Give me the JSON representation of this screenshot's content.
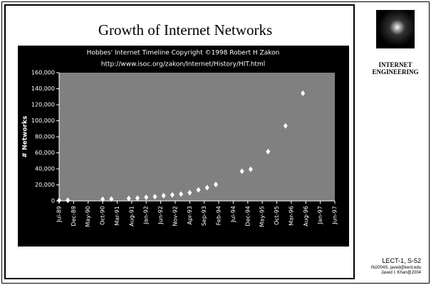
{
  "slide": {
    "title": "Growth of Internet Networks",
    "sidebar": "INTERNET ENGINEERING",
    "footer": [
      "LECT-1, S-52",
      "IN2004S, javed@kent.edu",
      "Javed I. Khan@2004"
    ]
  },
  "chart_data": {
    "type": "scatter",
    "title": "Hobbes' Internet Timeline Copyright ©1998 Robert H Zakon",
    "subtitle": "http://www.isoc.org/zakon/Internet/History/HIT.html",
    "y_label": "# Networks",
    "x": [
      "1989-07",
      "1989-10",
      "1990-10",
      "1991-01",
      "1991-07",
      "1991-10",
      "1992-01",
      "1992-04",
      "1992-07",
      "1992-10",
      "1993-01",
      "1993-04",
      "1993-07",
      "1993-10",
      "1994-01",
      "1994-10",
      "1995-01",
      "1995-07",
      "1996-01",
      "1996-07"
    ],
    "values": [
      650,
      753,
      2063,
      2338,
      3086,
      3556,
      4526,
      5291,
      6569,
      7505,
      8561,
      10218,
      13767,
      16533,
      20539,
      37022,
      39410,
      61538,
      93671,
      134365
    ],
    "color": "#ffffff",
    "xlim": [
      "1989-07",
      "1997-06"
    ],
    "xticks": [
      {
        "value": "1989-07",
        "label": "Jul-89"
      },
      {
        "value": "1989-12",
        "label": "Dec-89"
      },
      {
        "value": "1990-05",
        "label": "May-90"
      },
      {
        "value": "1990-10",
        "label": "Oct-90"
      },
      {
        "value": "1991-03",
        "label": "Mar-91"
      },
      {
        "value": "1991-08",
        "label": "Aug-91"
      },
      {
        "value": "1992-01",
        "label": "Jan-92"
      },
      {
        "value": "1992-06",
        "label": "Jun-92"
      },
      {
        "value": "1992-11",
        "label": "Nov-92"
      },
      {
        "value": "1993-04",
        "label": "Apr-93"
      },
      {
        "value": "1993-09",
        "label": "Sep-93"
      },
      {
        "value": "1994-02",
        "label": "Feb-94"
      },
      {
        "value": "1994-07",
        "label": "Jul-94"
      },
      {
        "value": "1994-12",
        "label": "Dec-94"
      },
      {
        "value": "1995-05",
        "label": "May-95"
      },
      {
        "value": "1995-10",
        "label": "Oct-95"
      },
      {
        "value": "1996-03",
        "label": "Mar-96"
      },
      {
        "value": "1996-08",
        "label": "Aug-96"
      },
      {
        "value": "1997-01",
        "label": "Jan-97"
      },
      {
        "value": "1997-06",
        "label": "Jun-97"
      }
    ],
    "ylim": [
      0,
      160000
    ],
    "yticks": [
      0,
      {
        "value": 20000,
        "label": "20,000"
      },
      {
        "value": 40000,
        "label": "40,000"
      },
      {
        "value": 60000,
        "label": "60,000"
      },
      {
        "value": 80000,
        "label": "80,000"
      },
      {
        "value": 100000,
        "label": "100,000"
      },
      {
        "value": 120000,
        "label": "120,000"
      },
      {
        "value": 140000,
        "label": "140,000"
      },
      {
        "value": 160000,
        "label": "160,000"
      }
    ],
    "grid": false
  }
}
